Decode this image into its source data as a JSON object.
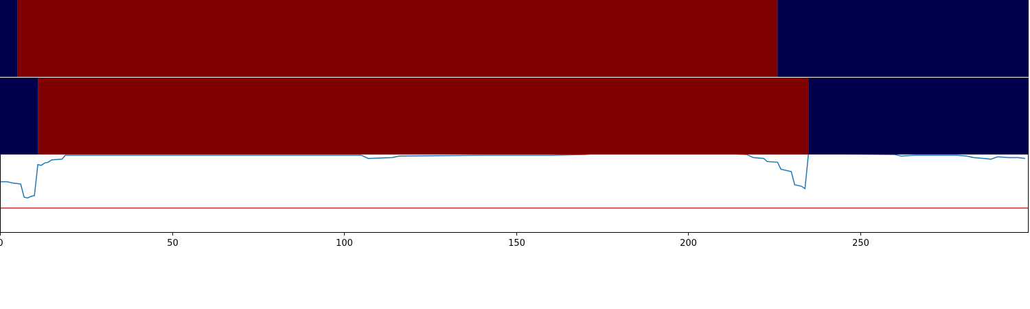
{
  "chart_data": [
    {
      "type": "heatmap",
      "name": "state-band-top",
      "segments": [
        {
          "start": 0,
          "end": 5,
          "state": "low"
        },
        {
          "start": 5,
          "end": 226,
          "state": "high"
        },
        {
          "start": 226,
          "end": 299,
          "state": "low"
        }
      ]
    },
    {
      "type": "heatmap",
      "name": "state-band-bottom",
      "segments": [
        {
          "start": 0,
          "end": 11,
          "state": "low"
        },
        {
          "start": 11,
          "end": 235,
          "state": "high"
        },
        {
          "start": 235,
          "end": 299,
          "state": "low"
        }
      ]
    },
    {
      "type": "line",
      "xlim": [
        0,
        299
      ],
      "ylim": [
        0,
        1
      ],
      "xticks": [
        0,
        50,
        100,
        150,
        200,
        250
      ],
      "threshold": 0.31,
      "series": [
        {
          "points": [
            [
              0,
              0.65
            ],
            [
              2,
              0.65
            ],
            [
              4,
              0.63
            ],
            [
              6,
              0.62
            ],
            [
              7,
              0.45
            ],
            [
              8,
              0.44
            ],
            [
              9,
              0.46
            ],
            [
              10,
              0.47
            ],
            [
              11,
              0.87
            ],
            [
              12,
              0.86
            ],
            [
              13,
              0.89
            ],
            [
              14,
              0.9
            ],
            [
              15,
              0.93
            ],
            [
              18,
              0.94
            ],
            [
              19,
              0.99
            ],
            [
              40,
              0.99
            ],
            [
              80,
              0.99
            ],
            [
              105,
              0.99
            ],
            [
              107,
              0.95
            ],
            [
              114,
              0.96
            ],
            [
              116,
              0.98
            ],
            [
              140,
              0.99
            ],
            [
              145,
              0.99
            ],
            [
              160,
              0.99
            ],
            [
              170,
              1.0
            ],
            [
              175,
              1.02
            ],
            [
              190,
              1.03
            ],
            [
              205,
              1.02
            ],
            [
              212,
              1.01
            ],
            [
              217,
              1.0
            ],
            [
              219,
              0.96
            ],
            [
              222,
              0.95
            ],
            [
              223,
              0.91
            ],
            [
              226,
              0.9
            ],
            [
              227,
              0.81
            ],
            [
              230,
              0.78
            ],
            [
              231,
              0.61
            ],
            [
              233,
              0.59
            ],
            [
              234,
              0.56
            ],
            [
              235,
              1.01
            ],
            [
              238,
              1.01
            ],
            [
              260,
              1.0
            ],
            [
              262,
              0.98
            ],
            [
              266,
              0.99
            ],
            [
              270,
              0.99
            ],
            [
              278,
              0.99
            ],
            [
              281,
              0.98
            ],
            [
              283,
              0.96
            ],
            [
              286,
              0.95
            ],
            [
              288,
              0.94
            ],
            [
              290,
              0.97
            ],
            [
              293,
              0.96
            ],
            [
              296,
              0.96
            ],
            [
              298,
              0.95
            ]
          ]
        }
      ]
    }
  ],
  "colors": {
    "low": "#00004c",
    "high": "#7f0000",
    "line": "#1f77b4",
    "threshold": "#d62728",
    "axis": "#000000",
    "band_separator": "#ffffff"
  }
}
